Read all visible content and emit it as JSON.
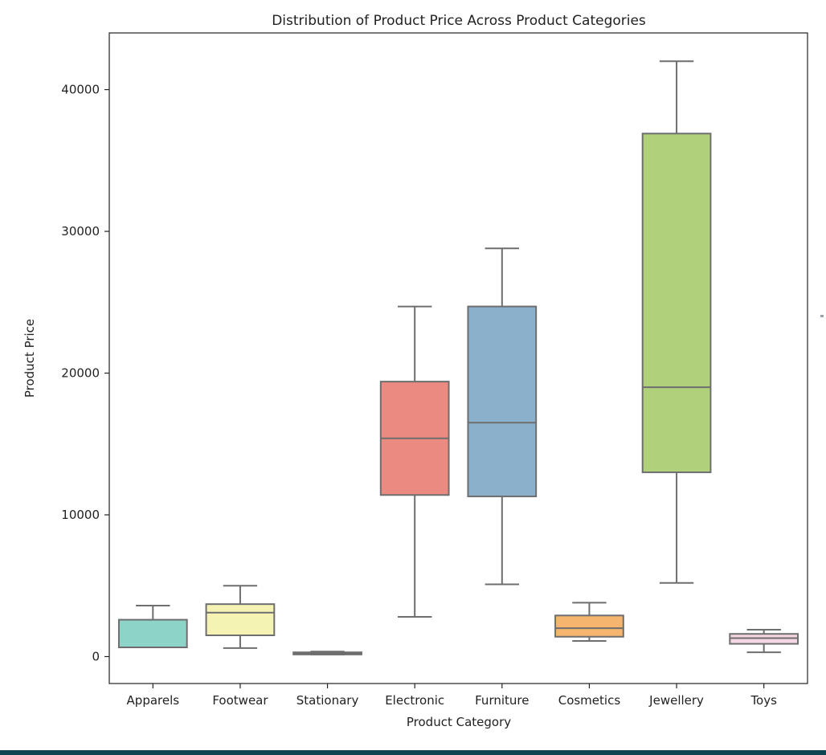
{
  "chart_data": {
    "type": "box",
    "title": "Distribution of Product Price Across Product Categories",
    "xlabel": "Product Category",
    "ylabel": "Product Price",
    "ylim": [
      -1900,
      44000
    ],
    "yticks": [
      0,
      10000,
      20000,
      30000,
      40000
    ],
    "grid": false,
    "categories": [
      "Apparels",
      "Footwear",
      "Stationary",
      "Electronic",
      "Furniture",
      "Cosmetics",
      "Jewellery",
      "Toys"
    ],
    "boxes": [
      {
        "category": "Apparels",
        "min": 650,
        "q1": 650,
        "median": 650,
        "q3": 2600,
        "max": 3600,
        "color": "#8dd3c7"
      },
      {
        "category": "Footwear",
        "min": 600,
        "q1": 1500,
        "median": 3100,
        "q3": 3700,
        "max": 5000,
        "color": "#f5f3b4"
      },
      {
        "category": "Stationary",
        "min": 150,
        "q1": 150,
        "median": 250,
        "q3": 300,
        "max": 350,
        "color": "#c5c0da"
      },
      {
        "category": "Electronic",
        "min": 2800,
        "q1": 11400,
        "median": 15400,
        "q3": 19400,
        "max": 24700,
        "color": "#eb8a80"
      },
      {
        "category": "Furniture",
        "min": 5100,
        "q1": 11300,
        "median": 16500,
        "q3": 24700,
        "max": 28800,
        "color": "#8ab0cc"
      },
      {
        "category": "Cosmetics",
        "min": 1100,
        "q1": 1400,
        "median": 2000,
        "q3": 2900,
        "max": 3800,
        "color": "#f5b56e"
      },
      {
        "category": "Jewellery",
        "min": 5200,
        "q1": 13000,
        "median": 19000,
        "q3": 36900,
        "max": 42000,
        "color": "#b0d07b"
      },
      {
        "category": "Toys",
        "min": 300,
        "q1": 900,
        "median": 1300,
        "q3": 1600,
        "max": 1900,
        "color": "#f5d5e3"
      }
    ],
    "line_color": "#6e6e6e"
  },
  "footer_color": "#0f4451"
}
